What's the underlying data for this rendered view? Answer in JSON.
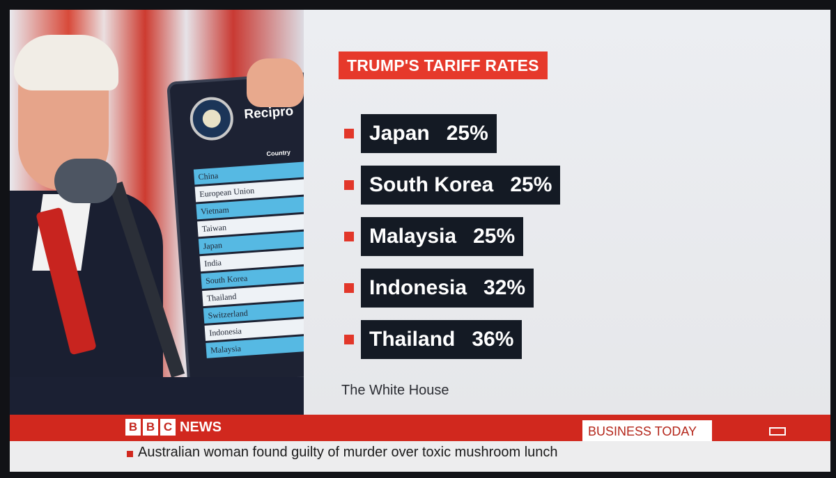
{
  "graphic": {
    "title": "TRUMP'S TARIFF RATES",
    "rates": [
      {
        "country": "Japan",
        "rate": "25%"
      },
      {
        "country": "South Korea",
        "rate": "25%"
      },
      {
        "country": "Malaysia",
        "rate": "25%"
      },
      {
        "country": "Indonesia",
        "rate": "32%"
      },
      {
        "country": "Thailand",
        "rate": "36%"
      }
    ],
    "source": "The White House"
  },
  "photo_board": {
    "title": "Recipro",
    "column_header": "Country",
    "countries": [
      "China",
      "European Union",
      "Vietnam",
      "Taiwan",
      "Japan",
      "India",
      "South Korea",
      "Thailand",
      "Switzerland",
      "Indonesia",
      "Malaysia"
    ]
  },
  "news_bar": {
    "logo_letters": [
      "B",
      "B",
      "C"
    ],
    "news_label": "NEWS",
    "program": "BUSINESS TODAY"
  },
  "ticker": {
    "headline": "Australian woman found guilty of murder over toxic mushroom lunch"
  },
  "colors": {
    "accent_red": "#e6392b",
    "rate_box_bg": "#141a24",
    "bbc_red": "#d1281e"
  }
}
